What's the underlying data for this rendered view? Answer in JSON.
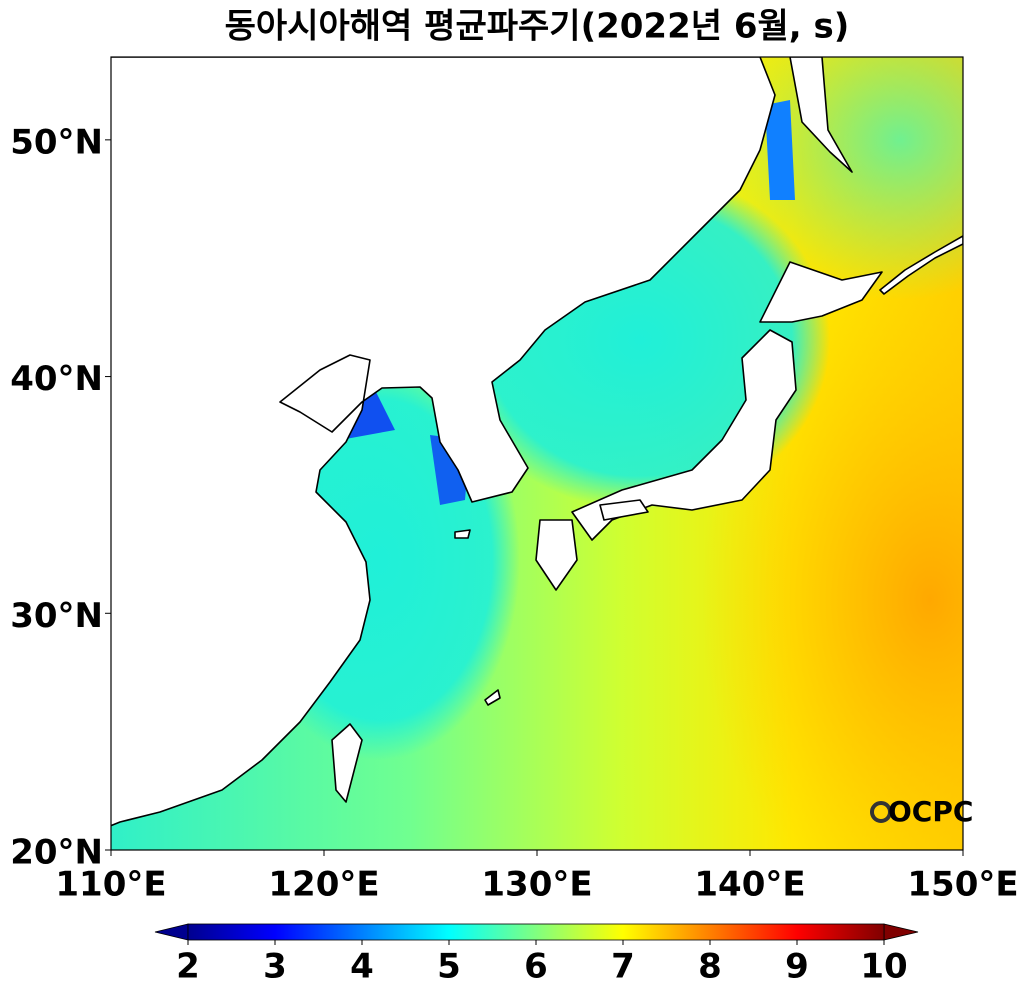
{
  "chart_data": {
    "type": "map",
    "title": "동아시아해역 평균파주기(2022년 6월, s)",
    "xlim": [
      110,
      150
    ],
    "ylim": [
      20,
      53.5
    ],
    "xticks": [
      {
        "value": 110,
        "label": "110°E"
      },
      {
        "value": 120,
        "label": "120°E"
      },
      {
        "value": 130,
        "label": "130°E"
      },
      {
        "value": 140,
        "label": "140°E"
      },
      {
        "value": 150,
        "label": "150°E"
      }
    ],
    "yticks": [
      {
        "value": 20,
        "label": "20°N"
      },
      {
        "value": 30,
        "label": "30°N"
      },
      {
        "value": 40,
        "label": "40°N"
      },
      {
        "value": 50,
        "label": "50°N"
      }
    ],
    "colorbar": {
      "lim": [
        2,
        10
      ],
      "ticks": [
        2,
        3,
        4,
        5,
        6,
        7,
        8,
        9,
        10
      ],
      "extend": "both",
      "colormap": [
        "#00008f",
        "#0000ff",
        "#0080ff",
        "#00ffff",
        "#80ff80",
        "#ffff00",
        "#ff8000",
        "#ff0000",
        "#800000"
      ]
    },
    "logo": "OCPC"
  }
}
